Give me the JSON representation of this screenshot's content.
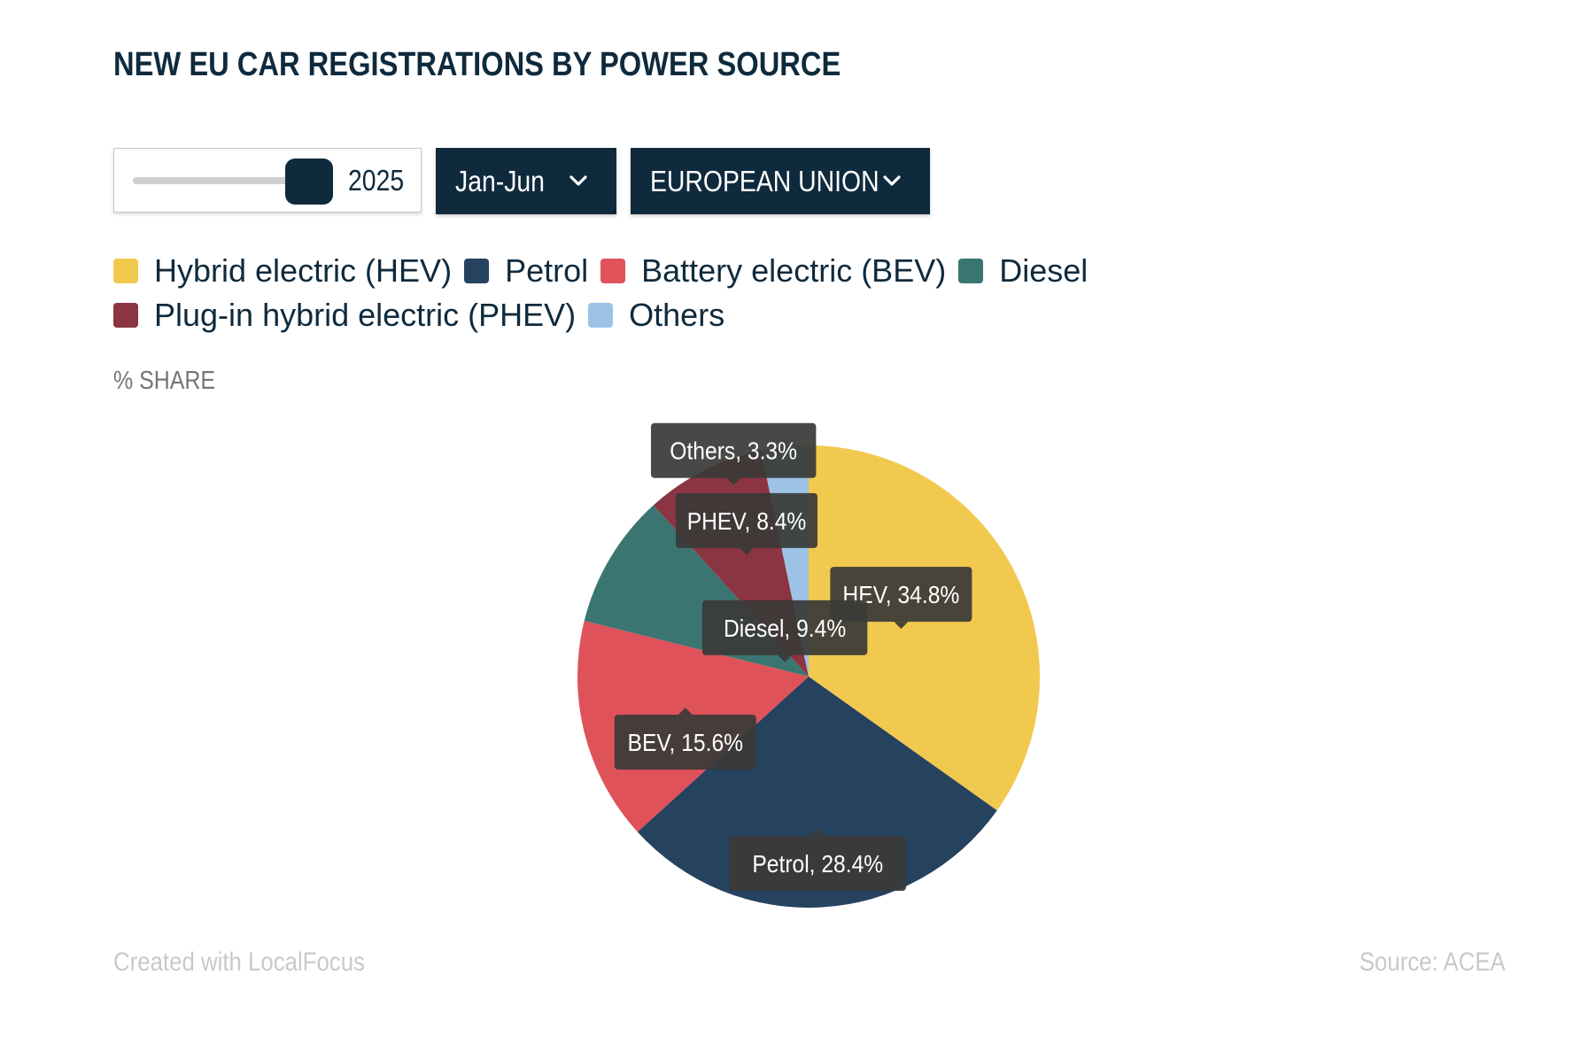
{
  "header": {
    "title": "NEW EU CAR REGISTRATIONS BY POWER SOURCE"
  },
  "controls": {
    "year_slider": {
      "value": "2025"
    },
    "period_dropdown": {
      "selected": "Jan-Jun",
      "icon": "chevron-down-icon"
    },
    "region_dropdown": {
      "selected": "EUROPEAN UNION",
      "icon": "chevron-down-icon"
    }
  },
  "legend": [
    {
      "label": "Hybrid electric (HEV)",
      "color": "#F2C94F"
    },
    {
      "label": "Petrol",
      "color": "#25425F"
    },
    {
      "label": "Battery electric (BEV)",
      "color": "#E05259"
    },
    {
      "label": "Diesel",
      "color": "#3A7572"
    },
    {
      "label": "Plug-in hybrid electric (PHEV)",
      "color": "#8B3442"
    },
    {
      "label": "Others",
      "color": "#9CC3E6"
    }
  ],
  "chart_data": {
    "type": "pie",
    "unit_label": "% SHARE",
    "slices": [
      {
        "name": "HEV",
        "label": "HEV, 34.8%",
        "value": 34.8,
        "color": "#F2C94F"
      },
      {
        "name": "Petrol",
        "label": "Petrol, 28.4%",
        "value": 28.4,
        "color": "#25425F"
      },
      {
        "name": "BEV",
        "label": "BEV, 15.6%",
        "value": 15.6,
        "color": "#E05259"
      },
      {
        "name": "Diesel",
        "label": "Diesel, 9.4%",
        "value": 9.4,
        "color": "#3A7572"
      },
      {
        "name": "PHEV",
        "label": "PHEV, 8.4%",
        "value": 8.4,
        "color": "#8B3442"
      },
      {
        "name": "Others",
        "label": "Others, 3.3%",
        "value": 3.3,
        "color": "#9CC3E6"
      }
    ]
  },
  "footer": {
    "credit": "Created with LocalFocus",
    "source": "Source:  ACEA"
  }
}
